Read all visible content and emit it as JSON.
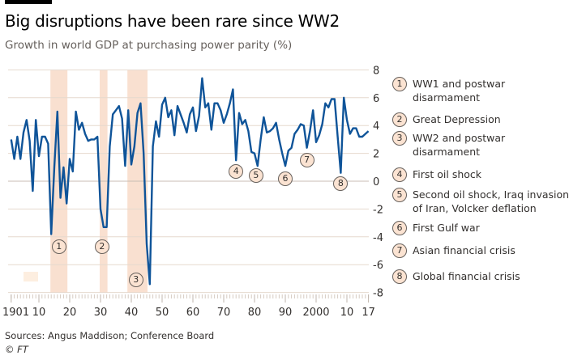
{
  "header": {
    "title": "Big disruptions have been rare since WW2",
    "subtitle": "Growth in world GDP at purchasing power parity (%)"
  },
  "footer": {
    "source": "Sources: Angus Maddison; Conference Board",
    "copyright": "© FT"
  },
  "colors": {
    "line": "#0f5499",
    "band": "#f9e0d0",
    "grid": "#e6d9ce",
    "zero": "#c8beb5"
  },
  "chart_data": {
    "type": "line",
    "title": "Big disruptions have been rare since WW2",
    "ylabel": "Growth in world GDP at purchasing power parity (%)",
    "ylim": [
      -8,
      8
    ],
    "xlim": [
      1901,
      2017
    ],
    "y_ticks": [
      "8",
      "6",
      "4",
      "2",
      "0",
      "-2",
      "-4",
      "-6",
      "-8"
    ],
    "x_ticks": [
      {
        "year": 1901,
        "label": "1901"
      },
      {
        "year": 1910,
        "label": "10"
      },
      {
        "year": 1920,
        "label": "20"
      },
      {
        "year": 1930,
        "label": "30"
      },
      {
        "year": 1940,
        "label": "40"
      },
      {
        "year": 1950,
        "label": "50"
      },
      {
        "year": 1960,
        "label": "60"
      },
      {
        "year": 1970,
        "label": "70"
      },
      {
        "year": 1980,
        "label": "80"
      },
      {
        "year": 1990,
        "label": "90"
      },
      {
        "year": 2000,
        "label": "2000"
      },
      {
        "year": 2010,
        "label": "10"
      },
      {
        "year": 2017,
        "label": "17"
      }
    ],
    "start_year": 1901,
    "series": [
      {
        "name": "World GDP growth",
        "values": [
          3.0,
          1.6,
          3.2,
          1.6,
          3.5,
          4.4,
          2.9,
          -0.7,
          4.4,
          1.8,
          3.2,
          3.2,
          2.7,
          -3.8,
          1.0,
          5.0,
          -1.2,
          1.0,
          -1.6,
          1.6,
          0.7,
          5.0,
          3.7,
          4.2,
          3.4,
          2.9,
          3.0,
          3.0,
          3.2,
          -2.0,
          -3.3,
          -3.3,
          2.5,
          4.8,
          5.1,
          5.4,
          4.5,
          1.1,
          5.1,
          1.2,
          2.5,
          4.9,
          5.6,
          2.0,
          -4.5,
          -7.4,
          2.5,
          4.3,
          3.2,
          5.5,
          6.0,
          4.6,
          5.1,
          3.3,
          5.4,
          4.8,
          4.2,
          3.5,
          4.8,
          5.3,
          3.6,
          4.7,
          7.4,
          5.3,
          5.6,
          3.7,
          5.6,
          5.6,
          5.1,
          4.2,
          4.8,
          5.6,
          6.6,
          1.5,
          4.9,
          4.1,
          4.4,
          3.6,
          2.1,
          2.0,
          1.1,
          3.0,
          4.6,
          3.5,
          3.6,
          3.8,
          4.2,
          3.0,
          2.0,
          1.1,
          2.2,
          2.4,
          3.4,
          3.7,
          4.1,
          4.0,
          2.4,
          3.6,
          5.1,
          2.8,
          3.3,
          4.1,
          5.6,
          5.3,
          5.9,
          5.9,
          3.2,
          0.6,
          6.0,
          4.4,
          3.4,
          3.8,
          3.8,
          3.2,
          3.2,
          3.4,
          3.6
        ]
      }
    ],
    "bands": [
      {
        "from": 1914,
        "to": 1919,
        "marker": "1"
      },
      {
        "from": 1930,
        "to": 1932,
        "marker": "2"
      },
      {
        "from": 1939,
        "to": 1945,
        "marker": "3"
      }
    ],
    "annotations": [
      {
        "marker": "1",
        "year": 1916.5,
        "value": -4.7,
        "text": "WW1 and postwar disarmament"
      },
      {
        "marker": "2",
        "year": 1930.5,
        "value": -4.7,
        "text": "Great Depression"
      },
      {
        "marker": "3",
        "year": 1941.5,
        "value": -7.1,
        "text": "WW2 and postwar disarmament"
      },
      {
        "marker": "4",
        "year": 1974,
        "value": 0.7,
        "text": "First oil shock"
      },
      {
        "marker": "5",
        "year": 1980.5,
        "value": 0.4,
        "text": "Second oil shock, Iraq invasion of Iran, Volcker deflation"
      },
      {
        "marker": "6",
        "year": 1990,
        "value": 0.2,
        "text": "First Gulf war"
      },
      {
        "marker": "7",
        "year": 1997,
        "value": 1.5,
        "text": "Asian financial crisis"
      },
      {
        "marker": "8",
        "year": 2008,
        "value": -0.2,
        "text": "Global financial crisis"
      }
    ],
    "grid": true
  }
}
